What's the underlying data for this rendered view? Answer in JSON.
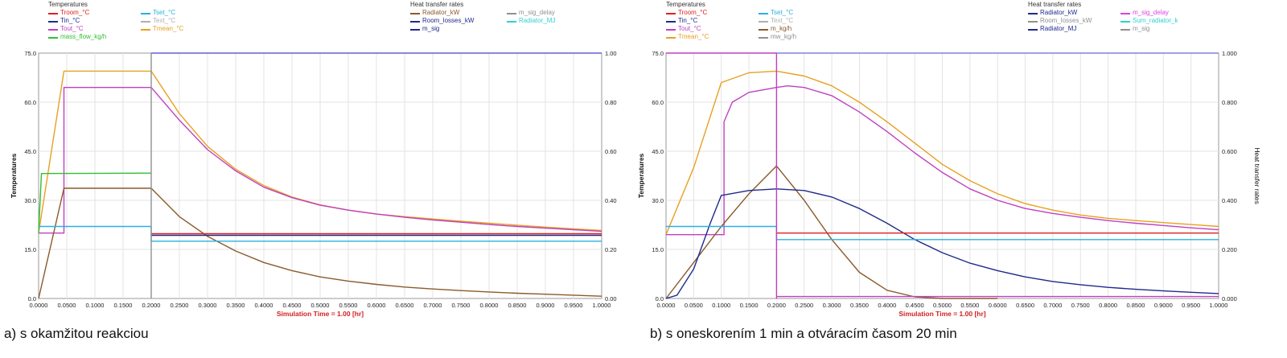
{
  "panels": [
    {
      "id": "a",
      "caption": "a) s okamžitou reakciou",
      "legend_groups": [
        {
          "title": "Temperatures",
          "items": [
            {
              "label": "Troom_°C",
              "color": "#e02020"
            },
            {
              "label": "Tset_°C",
              "color": "#2ab0e0"
            },
            {
              "label": "Tin_°C",
              "color": "#1f2a8c"
            },
            {
              "label": "Text_°C",
              "color": "#b0b0b0"
            },
            {
              "label": "Tout_°C",
              "color": "#c040c0"
            },
            {
              "label": "Tmean_°C",
              "color": "#e8a020"
            },
            {
              "label": "mass_flow_kg/h",
              "color": "#30c030"
            }
          ]
        },
        {
          "title": "Heat transfer rates",
          "items": [
            {
              "label": "Radiator_kW",
              "color": "#8b5a2b"
            },
            {
              "label": "m_sig_delay",
              "color": "#909090"
            },
            {
              "label": "Room_losses_kW",
              "color": "#1f2a8c"
            },
            {
              "label": "Radiator_MJ",
              "color": "#30d0d0"
            },
            {
              "label": "m_sig",
              "color": "#1f2a8c"
            }
          ]
        }
      ],
      "chart_data": {
        "type": "line",
        "xlabel": "Simulation Time = 1.00 [hr]",
        "ylabel": "Temperatures",
        "y2label": "",
        "xlim": [
          0,
          1
        ],
        "ylim": [
          0,
          75
        ],
        "y2lim": [
          0,
          1
        ],
        "x_ticks": [
          "0.0000",
          "0.0500",
          "0.1000",
          "0.1500",
          "0.2000",
          "0.2500",
          "0.3000",
          "0.3500",
          "0.4000",
          "0.4500",
          "0.5000",
          "0.5500",
          "0.6000",
          "0.6500",
          "0.7000",
          "0.7500",
          "0.8000",
          "0.8500",
          "0.9000",
          "0.9500",
          "1.0000"
        ],
        "y_ticks": [
          "0.0",
          "15.0",
          "30.0",
          "45.0",
          "60.0",
          "75.0"
        ],
        "y2_ticks": [
          "0.00",
          "0.20",
          "0.40",
          "0.60",
          "0.80",
          "1.00"
        ],
        "grid": true,
        "series": [
          {
            "name": "Tmean_°C",
            "color": "#e8a020",
            "x": [
              0,
              0.045,
              0.2,
              0.25,
              0.3,
              0.35,
              0.4,
              0.45,
              0.5,
              0.55,
              0.6,
              0.65,
              0.7,
              0.75,
              0.8,
              0.85,
              0.9,
              0.95,
              1.0
            ],
            "y": [
              20,
              69.5,
              69.5,
              56.5,
              46.5,
              39.5,
              34.5,
              31.0,
              28.6,
              27.0,
              25.8,
              25.0,
              24.3,
              23.6,
              23.0,
              22.4,
              21.8,
              21.3,
              20.8
            ]
          },
          {
            "name": "Tout_°C",
            "color": "#c040c0",
            "x": [
              0,
              0.045,
              0.045,
              0.05,
              0.2,
              0.25,
              0.3,
              0.35,
              0.4,
              0.45,
              0.5,
              0.55,
              0.6,
              0.65,
              0.7,
              0.75,
              0.8,
              0.85,
              0.9,
              0.95,
              1.0
            ],
            "y": [
              20,
              20,
              64.5,
              64.5,
              64.5,
              54.5,
              45.5,
              39.0,
              34.0,
              30.8,
              28.5,
              27.0,
              25.8,
              24.8,
              24.0,
              23.3,
              22.6,
              22.0,
              21.5,
              21.0,
              20.5
            ]
          },
          {
            "name": "mass_flow_kg/h",
            "color": "#30c030",
            "x": [
              0,
              0.005,
              0.2
            ],
            "y": [
              20,
              38.2,
              38.3
            ]
          },
          {
            "name": "Radiator_kW",
            "color": "#8b5a2b",
            "x": [
              0,
              0.045,
              0.2,
              0.25,
              0.3,
              0.35,
              0.4,
              0.45,
              0.5,
              0.55,
              0.6,
              0.65,
              0.7,
              0.75,
              0.8,
              0.85,
              0.9,
              0.95,
              1.0
            ],
            "y": [
              0,
              33.7,
              33.7,
              25.0,
              19.0,
              14.5,
              11.0,
              8.5,
              6.6,
              5.3,
              4.3,
              3.5,
              2.9,
              2.4,
              2.0,
              1.6,
              1.3,
              1.0,
              0.7
            ]
          },
          {
            "name": "Tset_°C",
            "color": "#2ab0e0",
            "x": [
              0,
              0.2,
              0.2,
              1.0
            ],
            "y": [
              22,
              22,
              17.5,
              17.5
            ]
          },
          {
            "name": "Troom_°C",
            "color": "#e02020",
            "x": [
              0.2,
              1.0
            ],
            "y": [
              19.8,
              19.8
            ]
          },
          {
            "name": "Room_losses_kW",
            "color": "#1f2a8c",
            "x": [
              0.2,
              1.0
            ],
            "y": [
              19.3,
              19.3
            ]
          },
          {
            "name": "m_sig_delay",
            "color": "#909090",
            "x": [
              0.2,
              0.2
            ],
            "y": [
              0,
              75
            ]
          },
          {
            "name": "m_sig",
            "color": "#6060d0",
            "x": [
              0.2,
              1.0
            ],
            "y": [
              75,
              75
            ]
          }
        ]
      }
    },
    {
      "id": "b",
      "caption": "b) s oneskorením 1 min a otváracím časom 20 min",
      "legend_groups": [
        {
          "title": "Temperatures",
          "items": [
            {
              "label": "Troom_°C",
              "color": "#e02020"
            },
            {
              "label": "Tset_°C",
              "color": "#2ab0e0"
            },
            {
              "label": "Tin_°C",
              "color": "#1f2a8c"
            },
            {
              "label": "Text_°C",
              "color": "#b0b0b0"
            },
            {
              "label": "Tout_°C",
              "color": "#c040c0"
            },
            {
              "label": "m_kg/h",
              "color": "#8b5a2b"
            },
            {
              "label": "Tmean_°C",
              "color": "#e8a020"
            },
            {
              "label": "mw_kg/h",
              "color": "#909090"
            }
          ]
        },
        {
          "title": "Heat transfer rates",
          "items": [
            {
              "label": "Radiator_kW",
              "color": "#1f2a8c"
            },
            {
              "label": "m_sig_delay",
              "color": "#e040e0"
            },
            {
              "label": "Room_losses_kW",
              "color": "#909090"
            },
            {
              "label": "Sum_radiator_k",
              "color": "#30d0d0"
            },
            {
              "label": "Radiator_MJ",
              "color": "#1f2a8c"
            },
            {
              "label": "m_sig",
              "color": "#909090"
            }
          ]
        }
      ],
      "chart_data": {
        "type": "line",
        "xlabel": "Simulation Time = 1.00 [hr]",
        "ylabel": "Temperatures",
        "y2label": "Heat transfer rates",
        "xlim": [
          0,
          1
        ],
        "ylim": [
          0,
          75
        ],
        "y2lim": [
          0,
          1
        ],
        "x_ticks": [
          "0.0000",
          "0.0500",
          "0.1000",
          "0.1500",
          "0.2000",
          "0.2500",
          "0.3000",
          "0.3500",
          "0.4000",
          "0.4500",
          "0.5000",
          "0.5500",
          "0.6000",
          "0.6500",
          "0.7000",
          "0.7500",
          "0.8000",
          "0.8500",
          "0.9000",
          "0.9500",
          "1.0000"
        ],
        "y_ticks": [
          "0.0",
          "15.0",
          "30.0",
          "45.0",
          "60.0",
          "75.0"
        ],
        "y2_ticks": [
          "0.000",
          "0.200",
          "0.400",
          "0.600",
          "0.800",
          "1.000"
        ],
        "grid": true,
        "series": [
          {
            "name": "Tmean_°C",
            "color": "#e8a020",
            "x": [
              0,
              0.05,
              0.1,
              0.15,
              0.2,
              0.25,
              0.3,
              0.35,
              0.4,
              0.45,
              0.5,
              0.55,
              0.6,
              0.65,
              0.7,
              0.75,
              0.8,
              0.85,
              0.9,
              0.95,
              1.0
            ],
            "y": [
              19.5,
              40,
              66,
              69,
              69.5,
              68,
              65,
              60,
              54,
              47.5,
              41,
              36,
              32,
              29,
              27,
              25.5,
              24.5,
              23.8,
              23.2,
              22.6,
              22.0
            ]
          },
          {
            "name": "Tout_°C",
            "color": "#c040c0",
            "x": [
              0,
              0.105,
              0.105,
              0.12,
              0.15,
              0.2,
              0.22,
              0.25,
              0.3,
              0.35,
              0.4,
              0.45,
              0.5,
              0.55,
              0.6,
              0.65,
              0.7,
              0.75,
              0.8,
              0.85,
              0.9,
              0.95,
              1.0
            ],
            "y": [
              19.5,
              19.5,
              54,
              60,
              63,
              64.5,
              65,
              64.5,
              62,
              57,
              51,
              44.5,
              38.5,
              33.5,
              30,
              27.5,
              26,
              24.8,
              23.8,
              23.0,
              22.3,
              21.6,
              21.0
            ]
          },
          {
            "name": "m_kg/h",
            "color": "#8b5a2b",
            "x": [
              0,
              0.05,
              0.1,
              0.15,
              0.2,
              0.25,
              0.3,
              0.35,
              0.4,
              0.45,
              0.5,
              0.55,
              0.6
            ],
            "y": [
              0,
              11,
              22,
              32,
              40.5,
              30,
              18,
              8,
              2.5,
              0.5,
              0,
              0,
              0
            ]
          },
          {
            "name": "Radiator_kW",
            "color": "#1f2a8c",
            "x": [
              0,
              0.02,
              0.05,
              0.08,
              0.1,
              0.15,
              0.2,
              0.25,
              0.3,
              0.35,
              0.4,
              0.45,
              0.5,
              0.55,
              0.6,
              0.65,
              0.7,
              0.75,
              0.8,
              0.85,
              0.9,
              0.95,
              1.0
            ],
            "y": [
              0,
              1,
              9,
              23,
              31.5,
              33,
              33.5,
              33,
              31,
              27.5,
              23,
              18,
              14,
              10.8,
              8.5,
              6.6,
              5.2,
              4.2,
              3.4,
              2.8,
              2.3,
              1.9,
              1.5
            ]
          },
          {
            "name": "Tset_°C",
            "color": "#2ab0e0",
            "x": [
              0,
              0.2,
              0.2,
              1.0
            ],
            "y": [
              22,
              22,
              18,
              18
            ]
          },
          {
            "name": "Troom_°C",
            "color": "#e02020",
            "x": [
              0.2,
              1.0
            ],
            "y": [
              20,
              20
            ]
          },
          {
            "name": "m_sig_delay",
            "color": "#c040c0",
            "x": [
              0,
              0.2,
              0.2,
              0.2,
              1.0
            ],
            "y": [
              75,
              75,
              0,
              0.6,
              0.6
            ]
          },
          {
            "name": "m_sig",
            "color": "#8080e0",
            "x": [
              0.2,
              1.0
            ],
            "y": [
              75,
              75
            ]
          }
        ]
      }
    }
  ]
}
